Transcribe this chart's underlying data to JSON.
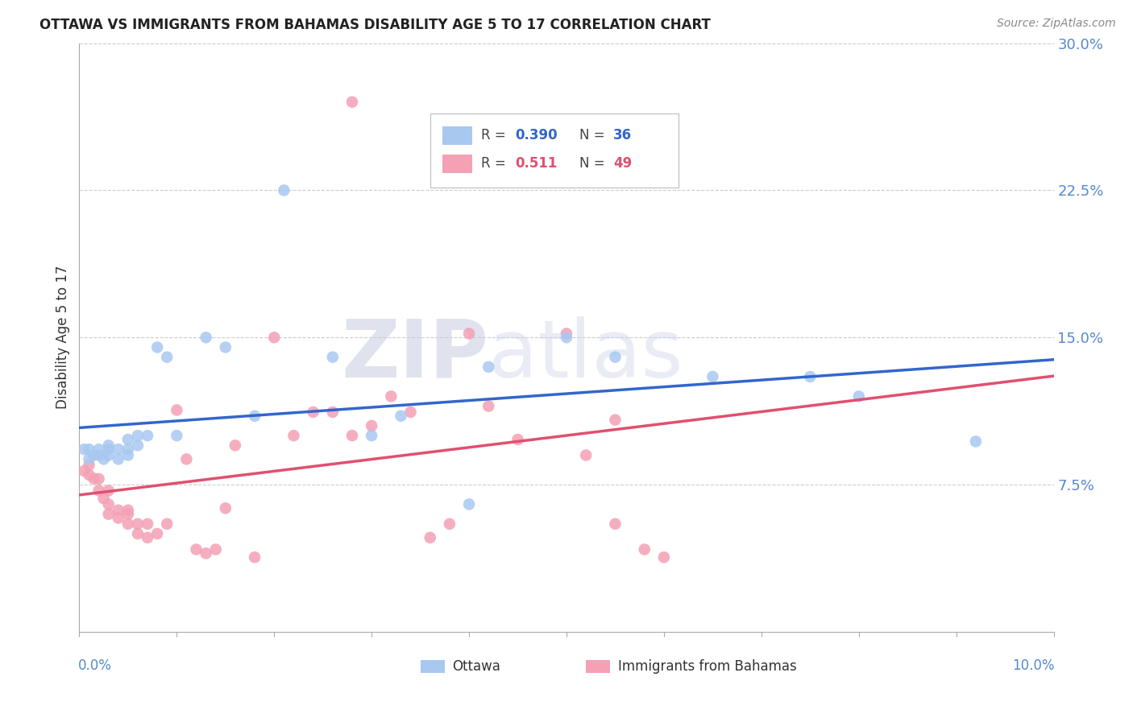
{
  "title": "OTTAWA VS IMMIGRANTS FROM BAHAMAS DISABILITY AGE 5 TO 17 CORRELATION CHART",
  "source": "Source: ZipAtlas.com",
  "ylabel": "Disability Age 5 to 17",
  "xlim": [
    0.0,
    0.1
  ],
  "ylim": [
    0.0,
    0.3
  ],
  "yticks": [
    0.075,
    0.15,
    0.225,
    0.3
  ],
  "ytick_labels": [
    "7.5%",
    "15.0%",
    "22.5%",
    "30.0%"
  ],
  "R_ottawa": 0.39,
  "N_ottawa": 36,
  "R_bahamas": 0.511,
  "N_bahamas": 49,
  "ottawa_color": "#A8C8F0",
  "bahamas_color": "#F4A0B5",
  "ottawa_line_color": "#3366CC",
  "bahamas_line_color": "#E05070",
  "background_color": "#FFFFFF",
  "ottawa_x": [
    0.0005,
    0.001,
    0.001,
    0.0015,
    0.002,
    0.002,
    0.0025,
    0.003,
    0.003,
    0.003,
    0.004,
    0.004,
    0.005,
    0.005,
    0.005,
    0.006,
    0.006,
    0.007,
    0.008,
    0.009,
    0.01,
    0.013,
    0.015,
    0.018,
    0.021,
    0.026,
    0.03,
    0.033,
    0.04,
    0.042,
    0.05,
    0.055,
    0.065,
    0.075,
    0.08,
    0.092
  ],
  "ottawa_y": [
    0.093,
    0.088,
    0.093,
    0.09,
    0.09,
    0.093,
    0.088,
    0.09,
    0.093,
    0.095,
    0.093,
    0.088,
    0.09,
    0.093,
    0.098,
    0.1,
    0.095,
    0.1,
    0.145,
    0.14,
    0.1,
    0.15,
    0.145,
    0.11,
    0.225,
    0.14,
    0.1,
    0.11,
    0.065,
    0.135,
    0.15,
    0.14,
    0.13,
    0.13,
    0.12,
    0.097
  ],
  "bahamas_x": [
    0.0005,
    0.001,
    0.001,
    0.0015,
    0.002,
    0.002,
    0.0025,
    0.003,
    0.003,
    0.003,
    0.004,
    0.004,
    0.005,
    0.005,
    0.005,
    0.006,
    0.006,
    0.007,
    0.007,
    0.008,
    0.009,
    0.01,
    0.011,
    0.012,
    0.013,
    0.014,
    0.015,
    0.016,
    0.018,
    0.02,
    0.022,
    0.024,
    0.026,
    0.028,
    0.028,
    0.03,
    0.032,
    0.034,
    0.036,
    0.038,
    0.04,
    0.042,
    0.045,
    0.05,
    0.052,
    0.055,
    0.055,
    0.058,
    0.06
  ],
  "bahamas_y": [
    0.082,
    0.08,
    0.085,
    0.078,
    0.072,
    0.078,
    0.068,
    0.065,
    0.06,
    0.072,
    0.058,
    0.062,
    0.06,
    0.055,
    0.062,
    0.055,
    0.05,
    0.048,
    0.055,
    0.05,
    0.055,
    0.113,
    0.088,
    0.042,
    0.04,
    0.042,
    0.063,
    0.095,
    0.038,
    0.15,
    0.1,
    0.112,
    0.112,
    0.27,
    0.1,
    0.105,
    0.12,
    0.112,
    0.048,
    0.055,
    0.152,
    0.115,
    0.098,
    0.152,
    0.09,
    0.108,
    0.055,
    0.042,
    0.038
  ]
}
